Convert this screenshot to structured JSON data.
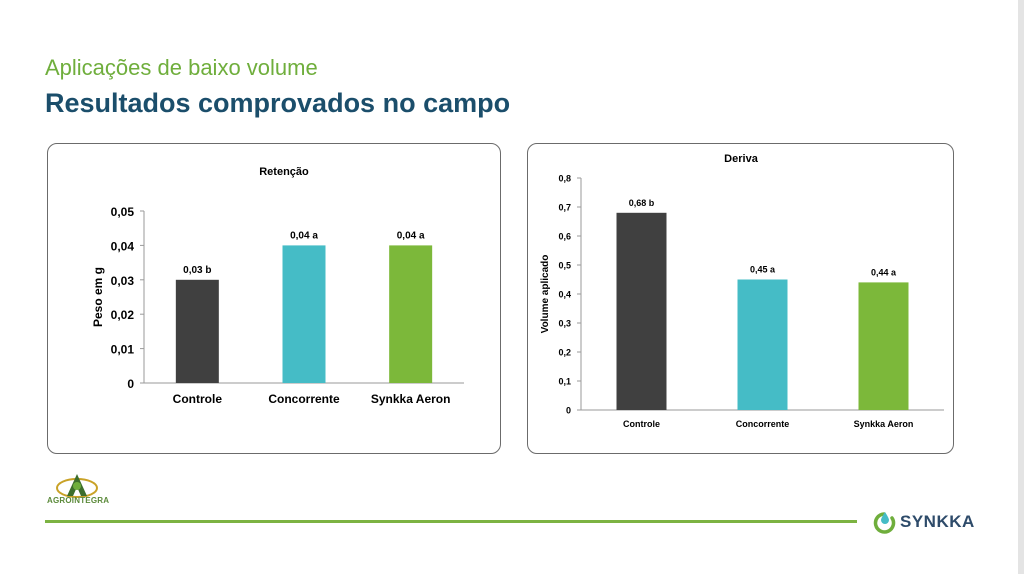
{
  "header": {
    "subtitle": "Aplicações de baixo volume",
    "title": "Resultados comprovados no campo"
  },
  "colors": {
    "subtitle": "#6fae3c",
    "title": "#1b4e6b",
    "controle": "#404040",
    "concorrente": "#45bcc6",
    "synkka": "#7cb83a",
    "footer_line": "#7cb342"
  },
  "chart_data": [
    {
      "type": "bar",
      "title": "Retenção",
      "ylabel": "Peso em g",
      "xlabel": "",
      "categories": [
        "Controle",
        "Concorrente",
        "Synkka Aeron"
      ],
      "values": [
        0.03,
        0.04,
        0.04
      ],
      "data_labels": [
        "0,03 b",
        "0,04 a",
        "0,04 a"
      ],
      "ylim": [
        0,
        0.05
      ],
      "yticks": [
        0,
        0.01,
        0.02,
        0.03,
        0.04,
        0.05
      ],
      "ytick_labels": [
        "0",
        "0,01",
        "0,02",
        "0,03",
        "0,04",
        "0,05"
      ],
      "grid": false
    },
    {
      "type": "bar",
      "title": "Deriva",
      "ylabel": "Volume aplicado",
      "xlabel": "",
      "categories": [
        "Controle",
        "Concorrente",
        "Synkka Aeron"
      ],
      "values": [
        0.68,
        0.45,
        0.44
      ],
      "data_labels": [
        "0,68 b",
        "0,45 a",
        "0,44 a"
      ],
      "ylim": [
        0,
        0.8
      ],
      "yticks": [
        0,
        0.1,
        0.2,
        0.3,
        0.4,
        0.5,
        0.6,
        0.7,
        0.8
      ],
      "ytick_labels": [
        "0",
        "0,1",
        "0,2",
        "0,3",
        "0,4",
        "0,5",
        "0,6",
        "0,7",
        "0,8"
      ],
      "grid": false
    }
  ],
  "logos": {
    "agro_text": "AGROINTEGRA",
    "agro_icon": "agrointegra-logo-icon",
    "synkka_text": "SYNKKA",
    "synkka_icon": "synkka-drop-icon"
  }
}
